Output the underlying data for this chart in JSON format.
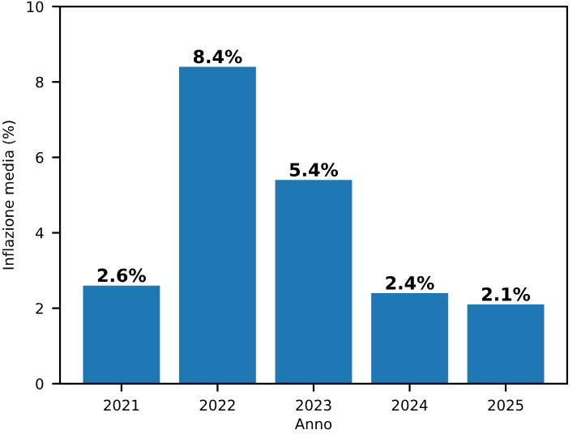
{
  "chart_data": {
    "type": "bar",
    "xlabel": "Anno",
    "ylabel": "Inflazione media (%)",
    "categories": [
      "2021",
      "2022",
      "2023",
      "2024",
      "2025"
    ],
    "values": [
      2.6,
      8.4,
      5.4,
      2.4,
      2.1
    ],
    "color": "#1f77b4",
    "value_labels": [
      "2.6%",
      "8.4%",
      "5.4%",
      "2.4%",
      "2.1%"
    ],
    "ylim": [
      0,
      10
    ],
    "yticks": [
      0,
      2,
      4,
      6,
      8,
      10
    ],
    "grid": false,
    "legend": false
  }
}
